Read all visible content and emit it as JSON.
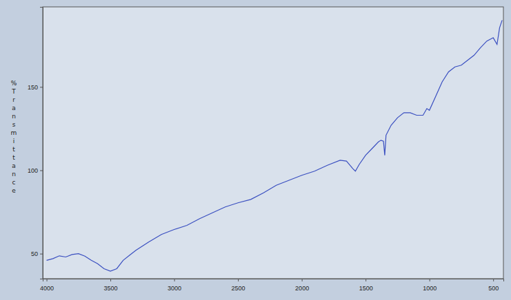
{
  "chart_data": {
    "type": "line",
    "y_label": "% Transmittance",
    "color": "#3a4fc0",
    "x": [
      4000,
      3950,
      3900,
      3850,
      3800,
      3750,
      3700,
      3650,
      3600,
      3550,
      3500,
      3450,
      3400,
      3350,
      3300,
      3200,
      3100,
      3000,
      2900,
      2800,
      2700,
      2600,
      2500,
      2400,
      2300,
      2200,
      2100,
      2000,
      1900,
      1800,
      1700,
      1650,
      1600,
      1580,
      1550,
      1500,
      1450,
      1400,
      1380,
      1360,
      1350,
      1340,
      1300,
      1250,
      1200,
      1150,
      1100,
      1050,
      1020,
      1000,
      950,
      900,
      850,
      800,
      750,
      700,
      650,
      600,
      550,
      500,
      470,
      450,
      430
    ],
    "values": [
      46,
      47,
      48.7,
      48,
      49.5,
      50,
      48.5,
      46,
      44,
      41,
      39.5,
      41,
      46,
      49,
      52,
      57,
      61.5,
      64.5,
      67,
      71,
      74.5,
      78,
      80.5,
      82.5,
      86.5,
      91,
      94,
      97,
      99.5,
      103,
      106,
      105.5,
      101,
      99.5,
      103.5,
      109,
      113,
      117,
      118,
      117.5,
      109,
      121,
      127,
      131.5,
      134.5,
      134.5,
      133,
      133,
      137,
      136,
      144.5,
      153,
      159,
      162,
      163,
      166,
      169,
      173.5,
      177.5,
      179.5,
      175.5,
      185.5,
      190
    ],
    "xlim": [
      4030,
      420
    ],
    "xticks": [
      4000,
      3500,
      3000,
      2500,
      2000,
      1500,
      1000,
      500
    ],
    "ylim": [
      35,
      198
    ],
    "yticks": [
      50,
      100,
      150
    ]
  }
}
